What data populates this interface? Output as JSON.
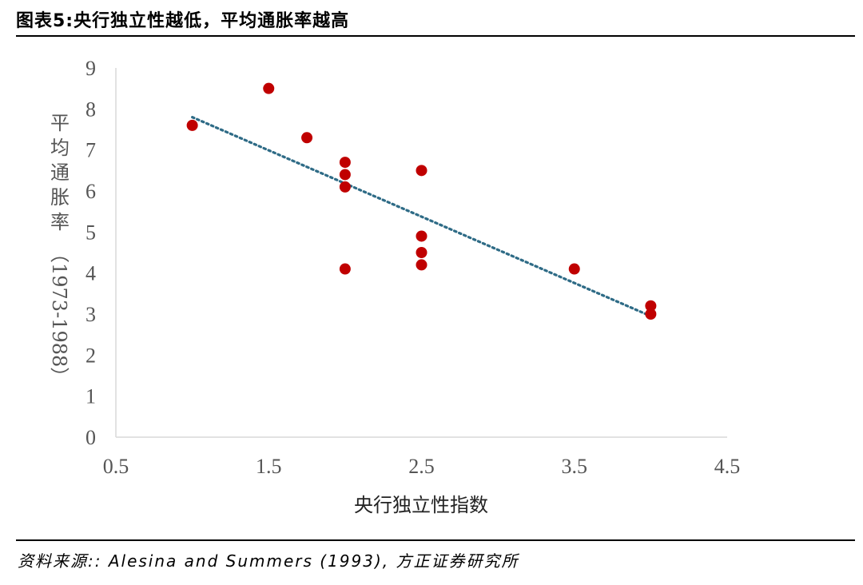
{
  "header": {
    "title": "图表5:央行独立性越低，平均通胀率越高"
  },
  "footer": {
    "source": "资料来源:: Alesina and Summers (1993), 方正证券研究所"
  },
  "chart_data": {
    "type": "scatter",
    "xlabel": "央行独立性指数",
    "ylabel": "平均通胀率（1973-1988）",
    "xlim": [
      0.5,
      4.5
    ],
    "ylim": [
      0,
      9
    ],
    "x_ticks": [
      "0.5",
      "1.5",
      "2.5",
      "3.5",
      "4.5"
    ],
    "y_ticks": [
      "0",
      "1",
      "2",
      "3",
      "4",
      "5",
      "6",
      "7",
      "8",
      "9"
    ],
    "grid": false,
    "point_color": "#c00000",
    "trend_color": "#2e6b86",
    "points": [
      {
        "x": 1.0,
        "y": 7.6
      },
      {
        "x": 1.5,
        "y": 8.5
      },
      {
        "x": 1.75,
        "y": 7.3
      },
      {
        "x": 2.0,
        "y": 6.7
      },
      {
        "x": 2.0,
        "y": 6.4
      },
      {
        "x": 2.0,
        "y": 6.1
      },
      {
        "x": 2.0,
        "y": 4.1
      },
      {
        "x": 2.5,
        "y": 6.5
      },
      {
        "x": 2.5,
        "y": 4.9
      },
      {
        "x": 2.5,
        "y": 4.5
      },
      {
        "x": 2.5,
        "y": 4.2
      },
      {
        "x": 3.5,
        "y": 4.1
      },
      {
        "x": 4.0,
        "y": 3.2
      },
      {
        "x": 4.0,
        "y": 3.0
      }
    ],
    "trendline": {
      "type": "linear",
      "from": {
        "x": 1.0,
        "y": 7.8
      },
      "to": {
        "x": 4.0,
        "y": 2.95
      }
    }
  }
}
